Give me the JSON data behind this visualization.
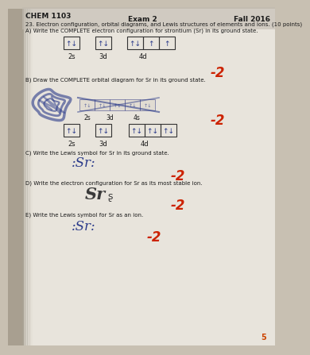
{
  "bg_color": "#c8c0b2",
  "paper_color": "#e8e4dc",
  "header_left": "CHEM 1103",
  "header_center": "Exam 2",
  "header_right": "Fall 2016",
  "q23_line1": "23. Electron configuration, orbital diagrams, and Lewis structures of elements and ions. (10 points)",
  "part_A": "A) Write the COMPLETE electron configuration for strontium (Sr) in its ground state.",
  "part_B": "B) Draw the COMPLETE orbital diagram for Sr in its ground state.",
  "part_C": "C) Write the Lewis symbol for Sr in its ground state.",
  "part_D": "D) Write the electron configuration for Sr as its most stable ion.",
  "part_E": "E) Write the Lewis symbol for Sr as an ion.",
  "score_color": "#cc2200",
  "hand_color": "#2a3a8a",
  "text_color": "#1a1a1a",
  "shadow_color": "#8a8070"
}
